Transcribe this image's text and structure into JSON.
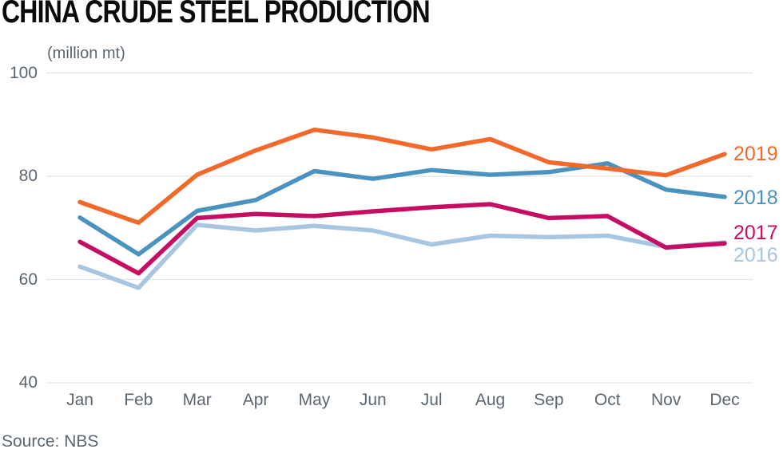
{
  "title": "CHINA CRUDE STEEL PRODUCTION",
  "unit_label": "(million mt)",
  "source": "Source: NBS",
  "colors": {
    "title": "#0a0a0a",
    "axis_text": "#5b6670",
    "gridline": "#e4e4e4",
    "background": "#ffffff",
    "series_2019": "#f2692c",
    "series_2018": "#4a93bf",
    "series_2017": "#c60d63",
    "series_2016": "#a8c6e2"
  },
  "chart_data": {
    "type": "line",
    "title": "CHINA CRUDE STEEL PRODUCTION",
    "ylabel": "(million mt)",
    "source": "NBS",
    "categories": [
      "Jan",
      "Feb",
      "Mar",
      "Apr",
      "May",
      "Jun",
      "Jul",
      "Aug",
      "Sep",
      "Oct",
      "Nov",
      "Dec"
    ],
    "ylim": [
      40,
      100
    ],
    "yticks": [
      100,
      80,
      60,
      40
    ],
    "grid": "horizontal-only",
    "legend_position": "right-line-end-labels",
    "legend_order_top_to_bottom": [
      "2019",
      "2018",
      "2017",
      "2016"
    ],
    "series": [
      {
        "name": "2016",
        "color": "#a8c6e2",
        "values": [
          62.5,
          58.4,
          70.6,
          69.5,
          70.4,
          69.5,
          66.8,
          68.5,
          68.2,
          68.5,
          66.3,
          67.2
        ]
      },
      {
        "name": "2017",
        "color": "#c60d63",
        "values": [
          67.3,
          61.2,
          71.9,
          72.7,
          72.3,
          73.2,
          74.0,
          74.6,
          71.9,
          72.3,
          66.2,
          67.0
        ]
      },
      {
        "name": "2018",
        "color": "#4a93bf",
        "values": [
          72.0,
          64.9,
          73.3,
          75.4,
          81.0,
          79.5,
          81.2,
          80.3,
          80.8,
          82.5,
          77.4,
          76.0
        ]
      },
      {
        "name": "2019",
        "color": "#f2692c",
        "values": [
          75.0,
          71.0,
          80.3,
          85.0,
          89.0,
          87.5,
          85.2,
          87.2,
          82.7,
          81.5,
          80.2,
          84.3
        ]
      }
    ]
  }
}
